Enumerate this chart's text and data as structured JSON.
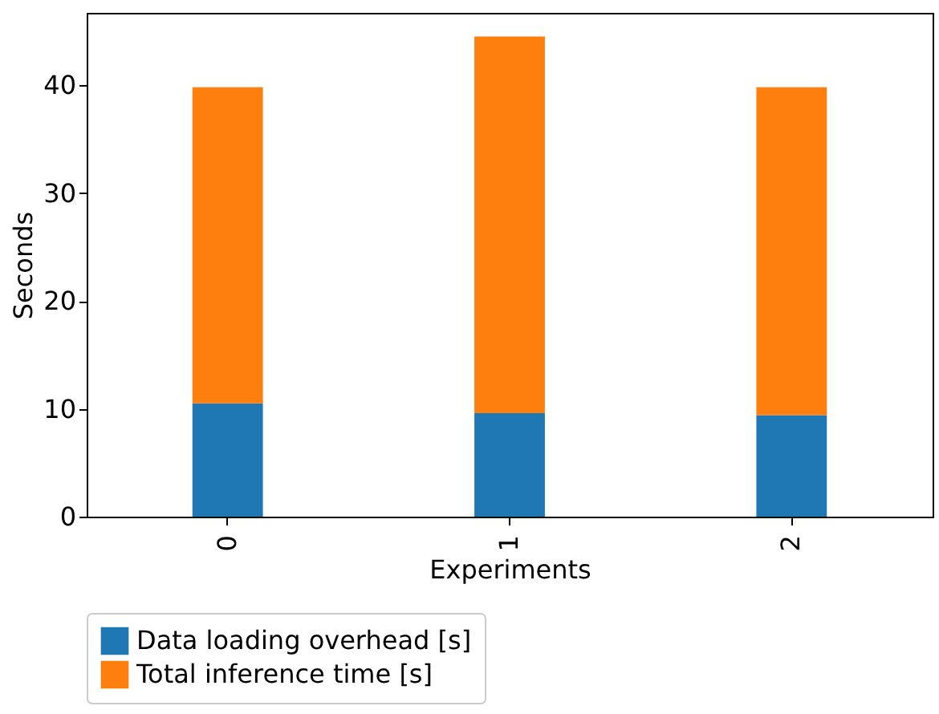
{
  "chart_data": {
    "type": "bar",
    "stacked": true,
    "xlabel": "Experiments",
    "ylabel": "Seconds",
    "categories": [
      "0",
      "1",
      "2"
    ],
    "series": [
      {
        "name": "Data loading overhead [s]",
        "color": "#1f77b4",
        "values": [
          10.5,
          9.6,
          9.4
        ]
      },
      {
        "name": "Total inference time [s]",
        "color": "#ff7f0e",
        "values": [
          29.3,
          34.9,
          30.4
        ]
      }
    ],
    "ylim": [
      0,
      46.7
    ],
    "yticks": [
      0,
      10,
      20,
      30,
      40
    ],
    "legend": "bottom",
    "grid": false
  }
}
